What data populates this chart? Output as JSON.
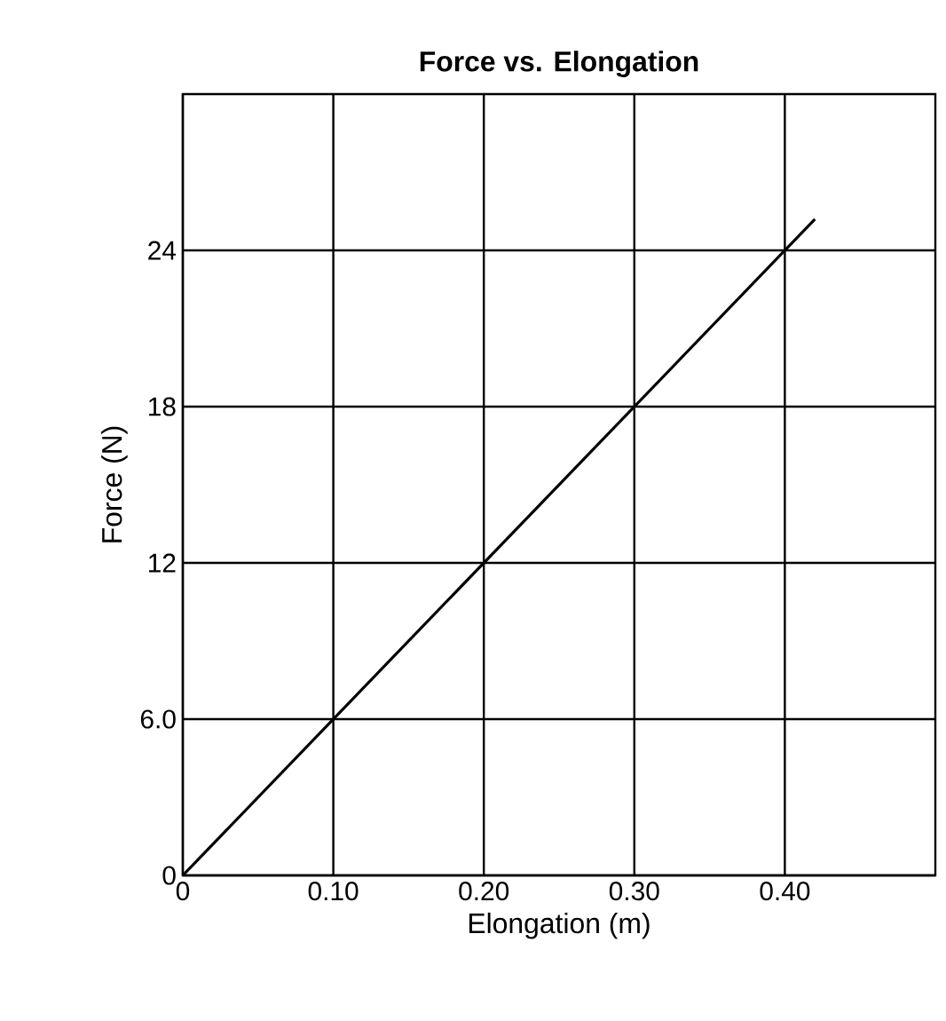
{
  "chart_data": {
    "type": "line",
    "title": "Force vs. Elongation",
    "xlabel": "Elongation (m)",
    "ylabel": "Force (N)",
    "x": [
      0,
      0.42
    ],
    "series": [
      {
        "color": "#000000",
        "values": [
          0,
          25.2
        ]
      }
    ],
    "xlim": [
      0,
      0.5
    ],
    "ylim": [
      0,
      30
    ],
    "xticks": [
      0,
      {
        "value": 0.1,
        "label": "0.10"
      },
      {
        "value": 0.2,
        "label": "0.20"
      },
      {
        "value": 0.3,
        "label": "0.30"
      },
      {
        "value": 0.4,
        "label": "0.40"
      }
    ],
    "yticks": [
      0,
      {
        "value": 6,
        "label": "6.0"
      },
      12,
      18,
      24
    ],
    "grid": true,
    "marker": "none",
    "line_style": "solid"
  }
}
